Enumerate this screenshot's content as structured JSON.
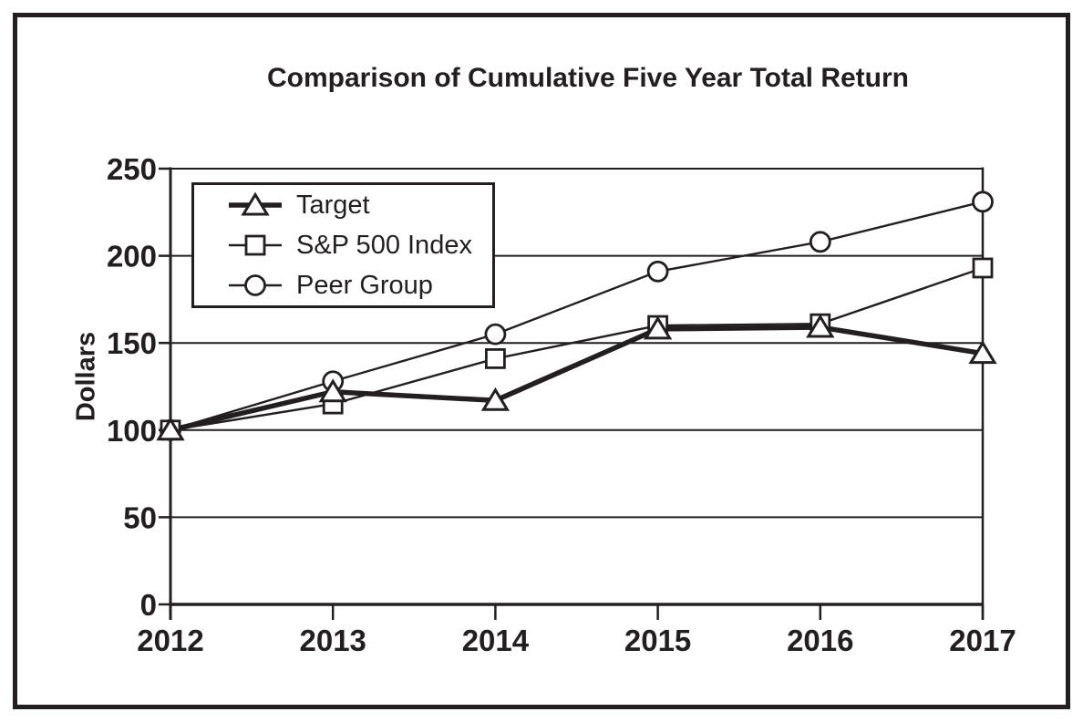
{
  "chart_data": {
    "type": "line",
    "title": "Comparison of Cumulative Five Year Total Return",
    "ylabel": "Dollars",
    "xlabel": "",
    "categories": [
      "2012",
      "2013",
      "2014",
      "2015",
      "2016",
      "2017"
    ],
    "yticks": [
      0,
      50,
      100,
      150,
      200,
      250
    ],
    "ylim": [
      0,
      250
    ],
    "grid": "horizontal-gridlines",
    "legend_position": "upper-left-inside",
    "series": [
      {
        "name": "Target",
        "marker": "triangle",
        "line": "thick",
        "values": [
          100,
          122,
          117,
          158,
          159,
          144
        ]
      },
      {
        "name": "S&P 500 Index",
        "marker": "square",
        "line": "thin",
        "values": [
          100,
          115,
          141,
          160,
          161,
          193
        ]
      },
      {
        "name": "Peer Group",
        "marker": "circle",
        "line": "thin",
        "values": [
          100,
          128,
          155,
          191,
          208,
          231
        ]
      }
    ],
    "colors": {
      "line": "#231f20",
      "background": "#ffffff"
    }
  }
}
